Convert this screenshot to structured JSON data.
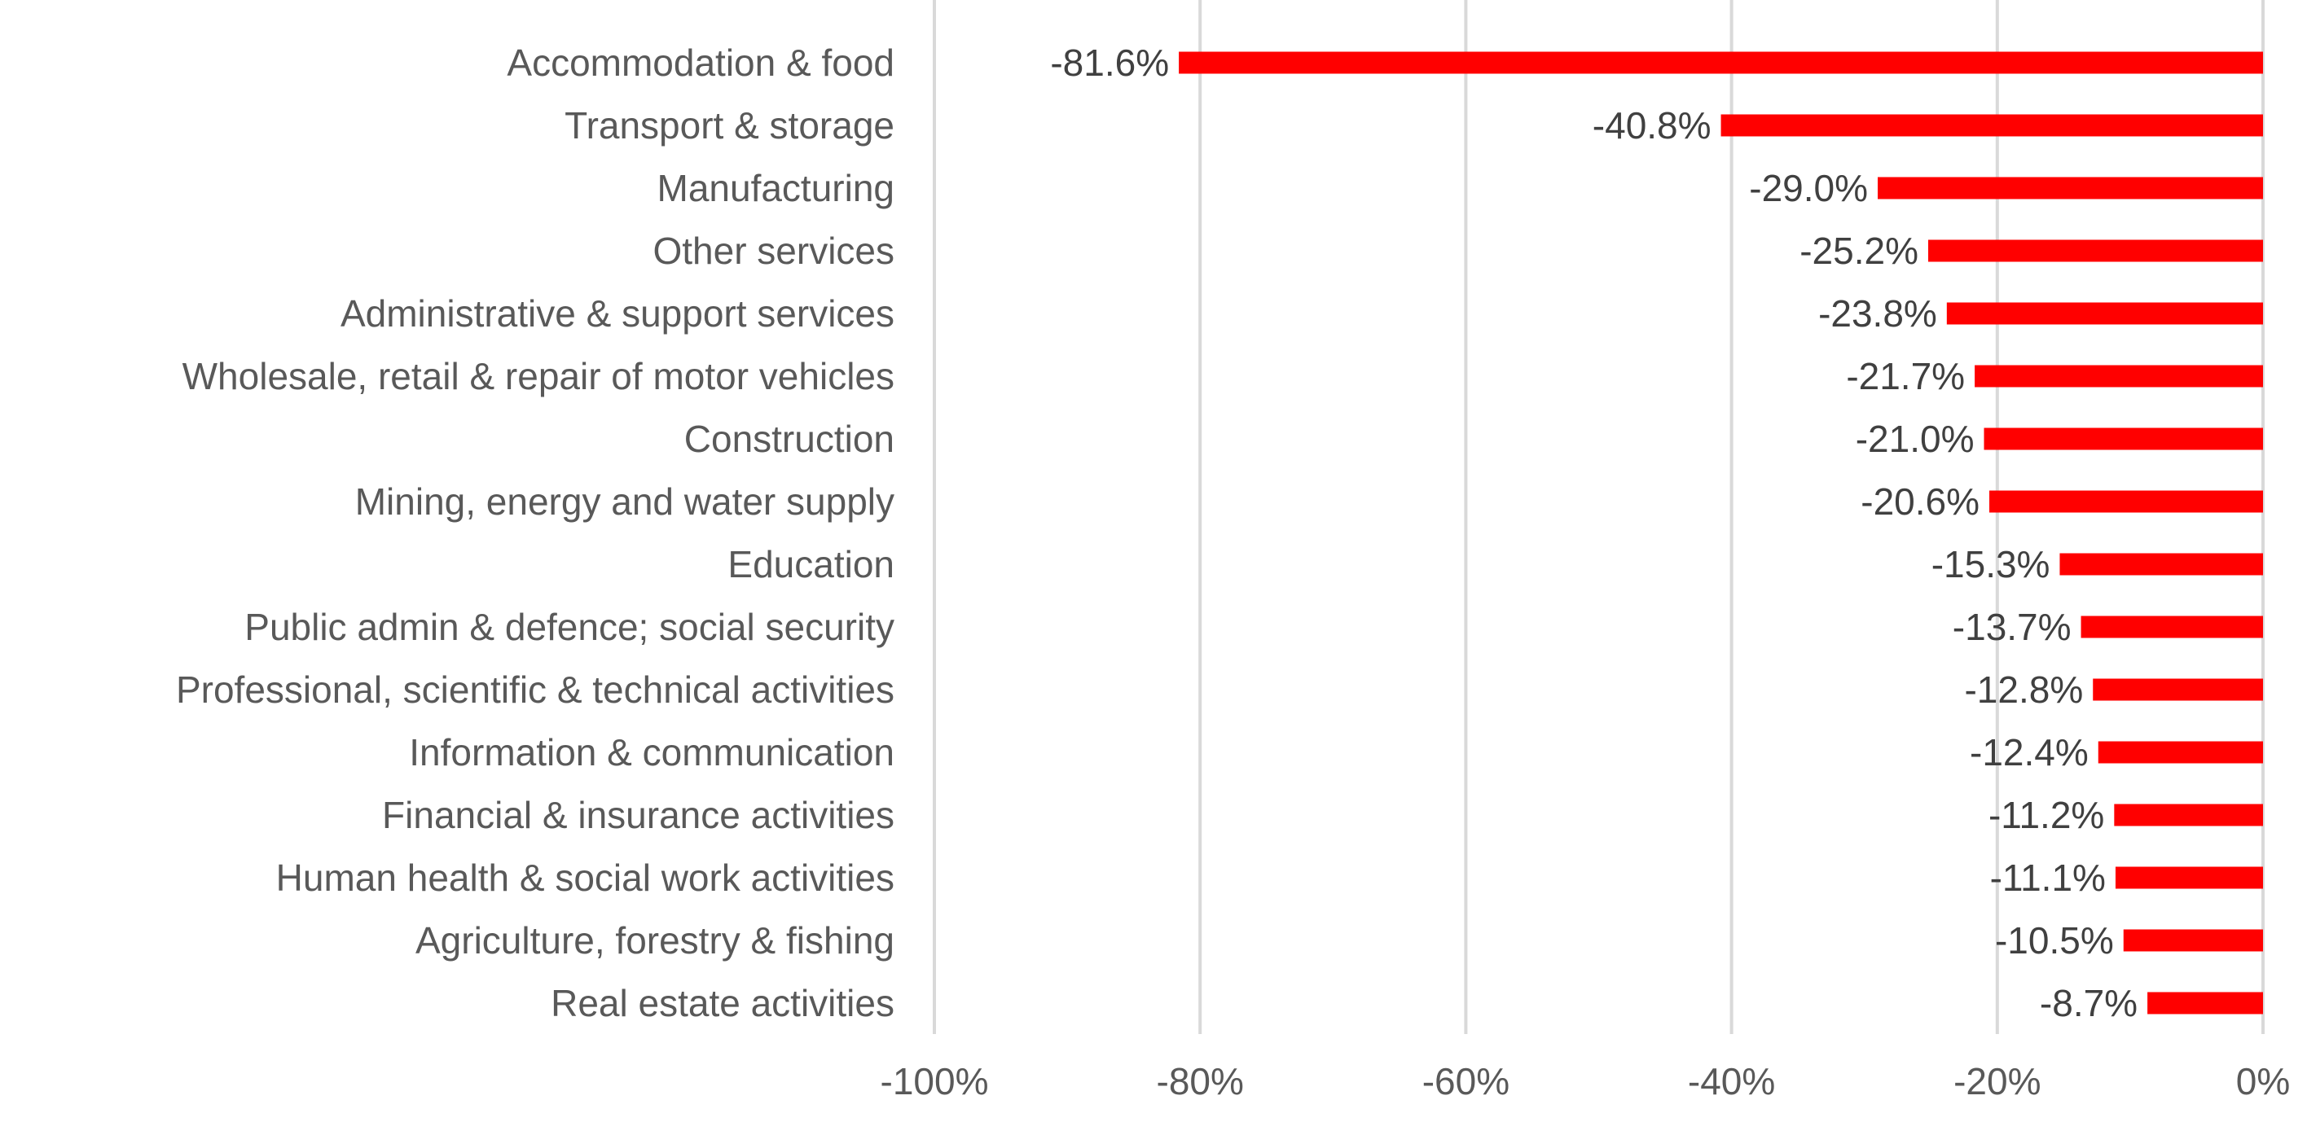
{
  "chart_data": {
    "type": "bar",
    "orientation": "horizontal",
    "categories": [
      "Accommodation & food",
      "Transport & storage",
      "Manufacturing",
      "Other services",
      "Administrative & support services",
      "Wholesale, retail & repair of motor vehicles",
      "Construction",
      "Mining, energy and water supply",
      "Education",
      "Public admin & defence; social security",
      "Professional, scientific & technical activities",
      "Information & communication",
      "Financial & insurance activities",
      "Human health & social work activities",
      "Agriculture, forestry & fishing",
      "Real estate activities"
    ],
    "values": [
      -81.6,
      -40.8,
      -29.0,
      -25.2,
      -23.8,
      -21.7,
      -21.0,
      -20.6,
      -15.3,
      -13.7,
      -12.8,
      -12.4,
      -11.2,
      -11.1,
      -10.5,
      -8.7
    ],
    "data_labels": [
      "-81.6%",
      "-40.8%",
      "-29.0%",
      "-25.2%",
      "-23.8%",
      "-21.7%",
      "-21.0%",
      "-20.6%",
      "-15.3%",
      "-13.7%",
      "-12.8%",
      "-12.4%",
      "-11.2%",
      "-11.1%",
      "-10.5%",
      "-8.7%"
    ],
    "xlim": [
      -100,
      0
    ],
    "x_ticks": [
      -100,
      -80,
      -60,
      -40,
      -20,
      0
    ],
    "x_tick_labels": [
      "-100%",
      "-80%",
      "-60%",
      "-40%",
      "-20%",
      "0%"
    ],
    "title": "",
    "xlabel": "",
    "ylabel": "",
    "grid": "vertical",
    "legend": "none",
    "bar_color": "#ff0000",
    "grid_color": "#d9d9d9",
    "text_color": "#595959"
  }
}
